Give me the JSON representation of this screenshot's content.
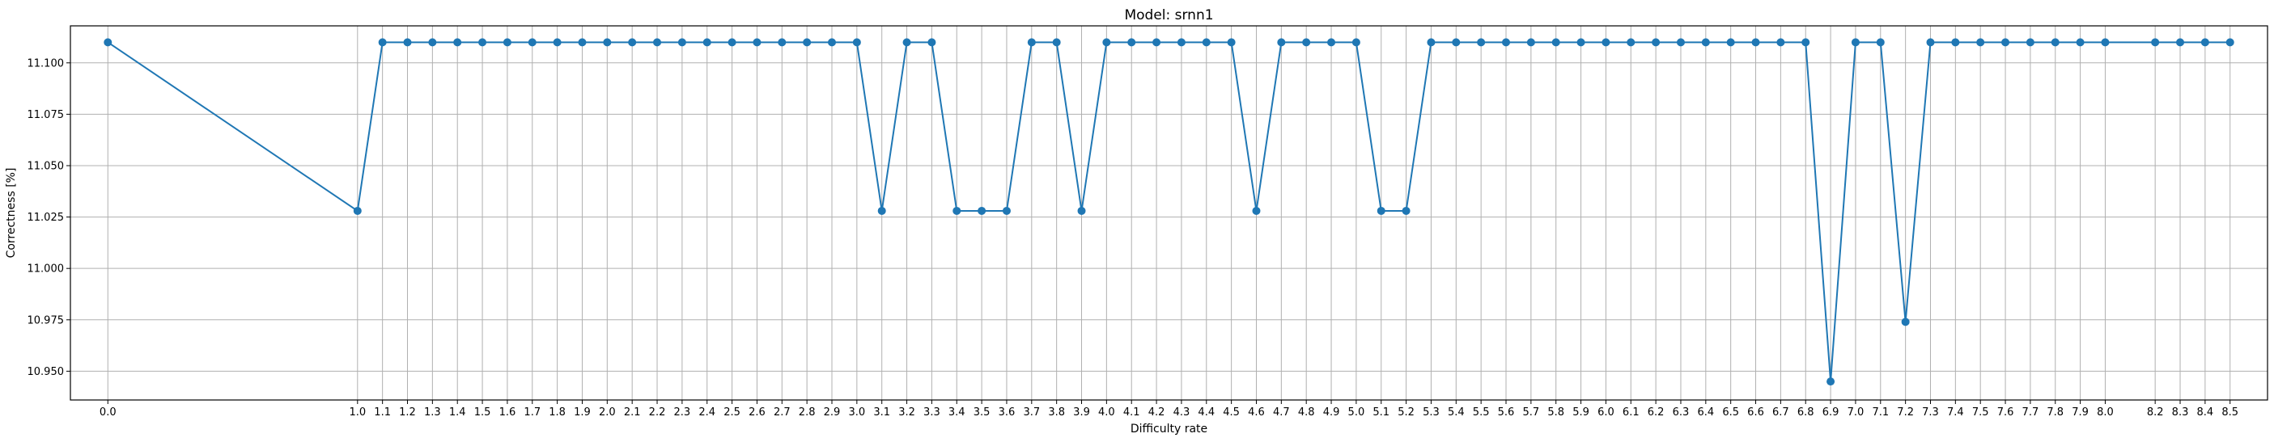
{
  "chart_data": {
    "type": "line",
    "title": "Model: srnn1",
    "xlabel": "Difficulty rate",
    "ylabel": "Correctness [%]",
    "grid": true,
    "line_color": "#1f77b4",
    "xlim": [
      -0.15,
      8.65
    ],
    "ylim": [
      10.936,
      11.118
    ],
    "x_ticks": [
      0.0,
      1.0,
      1.1,
      1.2,
      1.3,
      1.4,
      1.5,
      1.6,
      1.7,
      1.8,
      1.9,
      2.0,
      2.1,
      2.2,
      2.3,
      2.4,
      2.5,
      2.6,
      2.7,
      2.8,
      2.9,
      3.0,
      3.1,
      3.2,
      3.3,
      3.4,
      3.5,
      3.6,
      3.7,
      3.8,
      3.9,
      4.0,
      4.1,
      4.2,
      4.3,
      4.4,
      4.5,
      4.6,
      4.7,
      4.8,
      4.9,
      5.0,
      5.1,
      5.2,
      5.3,
      5.4,
      5.5,
      5.6,
      5.7,
      5.8,
      5.9,
      6.0,
      6.1,
      6.2,
      6.3,
      6.4,
      6.5,
      6.6,
      6.7,
      6.8,
      6.9,
      7.0,
      7.1,
      7.2,
      7.3,
      7.4,
      7.5,
      7.6,
      7.7,
      7.8,
      7.9,
      8.0,
      8.2,
      8.3,
      8.4,
      8.5
    ],
    "x_tick_labels": [
      "0.0",
      "1.0",
      "1.1",
      "1.2",
      "1.3",
      "1.4",
      "1.5",
      "1.6",
      "1.7",
      "1.8",
      "1.9",
      "2.0",
      "2.1",
      "2.2",
      "2.3",
      "2.4",
      "2.5",
      "2.6",
      "2.7",
      "2.8",
      "2.9",
      "3.0",
      "3.1",
      "3.2",
      "3.3",
      "3.4",
      "3.5",
      "3.6",
      "3.7",
      "3.8",
      "3.9",
      "4.0",
      "4.1",
      "4.2",
      "4.3",
      "4.4",
      "4.5",
      "4.6",
      "4.7",
      "4.8",
      "4.9",
      "5.0",
      "5.1",
      "5.2",
      "5.3",
      "5.4",
      "5.5",
      "5.6",
      "5.7",
      "5.8",
      "5.9",
      "6.0",
      "6.1",
      "6.2",
      "6.3",
      "6.4",
      "6.5",
      "6.6",
      "6.7",
      "6.8",
      "6.9",
      "7.0",
      "7.1",
      "7.2",
      "7.3",
      "7.4",
      "7.5",
      "7.6",
      "7.7",
      "7.8",
      "7.9",
      "8.0",
      "8.2",
      "8.3",
      "8.4",
      "8.5"
    ],
    "y_ticks": [
      10.95,
      10.975,
      11.0,
      11.025,
      11.05,
      11.075,
      11.1
    ],
    "y_tick_labels": [
      "10.950",
      "10.975",
      "11.000",
      "11.025",
      "11.050",
      "11.075",
      "11.100"
    ],
    "x": [
      0.0,
      1.0,
      1.1,
      1.2,
      1.3,
      1.4,
      1.5,
      1.6,
      1.7,
      1.8,
      1.9,
      2.0,
      2.1,
      2.2,
      2.3,
      2.4,
      2.5,
      2.6,
      2.7,
      2.8,
      2.9,
      3.0,
      3.1,
      3.2,
      3.3,
      3.4,
      3.5,
      3.6,
      3.7,
      3.8,
      3.9,
      4.0,
      4.1,
      4.2,
      4.3,
      4.4,
      4.5,
      4.6,
      4.7,
      4.8,
      4.9,
      5.0,
      5.1,
      5.2,
      5.3,
      5.4,
      5.5,
      5.6,
      5.7,
      5.8,
      5.9,
      6.0,
      6.1,
      6.2,
      6.3,
      6.4,
      6.5,
      6.6,
      6.7,
      6.8,
      6.9,
      7.0,
      7.1,
      7.2,
      7.3,
      7.4,
      7.5,
      7.6,
      7.7,
      7.8,
      7.9,
      8.0,
      8.2,
      8.3,
      8.4,
      8.5
    ],
    "y": [
      11.11,
      11.028,
      11.11,
      11.11,
      11.11,
      11.11,
      11.11,
      11.11,
      11.11,
      11.11,
      11.11,
      11.11,
      11.11,
      11.11,
      11.11,
      11.11,
      11.11,
      11.11,
      11.11,
      11.11,
      11.11,
      11.11,
      11.028,
      11.11,
      11.11,
      11.028,
      11.028,
      11.028,
      11.11,
      11.11,
      11.028,
      11.11,
      11.11,
      11.11,
      11.11,
      11.11,
      11.11,
      11.028,
      11.11,
      11.11,
      11.11,
      11.11,
      11.028,
      11.028,
      11.11,
      11.11,
      11.11,
      11.11,
      11.11,
      11.11,
      11.11,
      11.11,
      11.11,
      11.11,
      11.11,
      11.11,
      11.11,
      11.11,
      11.11,
      11.11,
      10.945,
      11.11,
      11.11,
      10.974,
      11.11,
      11.11,
      11.11,
      11.11,
      11.11,
      11.11,
      11.11,
      11.11,
      11.11,
      11.11,
      11.11,
      11.11
    ]
  }
}
